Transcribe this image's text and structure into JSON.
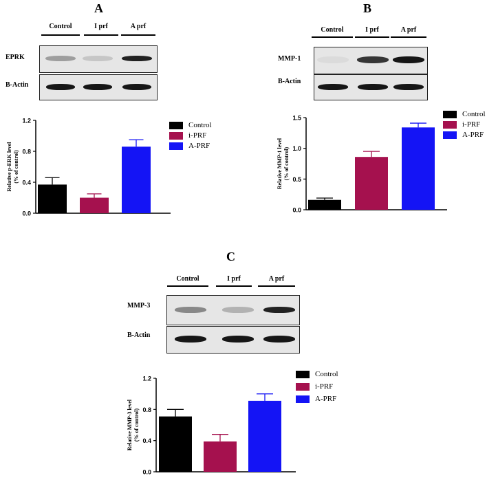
{
  "lanes": [
    "Control",
    "I prf",
    "A prf"
  ],
  "panels": [
    {
      "letter": "A",
      "marker": "EPRK",
      "loading": "B-Actin",
      "bands_marker": [
        0.35,
        0.15,
        0.95
      ],
      "bands_loading": [
        1,
        1,
        1
      ]
    },
    {
      "letter": "B",
      "marker": "MMP-1",
      "loading": "B-Actin",
      "bands_marker": [
        0.05,
        0.85,
        1.0
      ],
      "bands_loading": [
        1,
        1,
        1
      ]
    },
    {
      "letter": "C",
      "marker": "MMP-3",
      "loading": "B-Actin",
      "bands_marker": [
        0.45,
        0.25,
        0.95
      ],
      "bands_loading": [
        1,
        1,
        1
      ]
    }
  ],
  "legend": {
    "items": [
      {
        "label": "Control",
        "color": "#000000"
      },
      {
        "label": "i-PRF",
        "color": "#a5114e"
      },
      {
        "label": "A-PRF",
        "color": "#1414f5"
      }
    ]
  },
  "chart_data": [
    {
      "type": "bar",
      "categories": [
        "Control",
        "i-PRF",
        "A-PRF"
      ],
      "values": [
        0.37,
        0.2,
        0.86
      ],
      "errors": [
        0.09,
        0.05,
        0.09
      ],
      "ylabel_line1": "Relative p-ERK level",
      "ylabel_line2": "(% of control)",
      "ylim": [
        0,
        1.2
      ],
      "yticks": [
        "0.0",
        "0.4",
        "0.8",
        "1.2"
      ],
      "ytick_values": [
        0,
        0.4,
        0.8,
        1.2
      ]
    },
    {
      "type": "bar",
      "categories": [
        "Control",
        "i-PRF",
        "A-PRF"
      ],
      "values": [
        0.16,
        0.86,
        1.34
      ],
      "errors": [
        0.03,
        0.09,
        0.07
      ],
      "ylabel_line1": "Relative MMP-1 level",
      "ylabel_line2": "(% of control)",
      "ylim": [
        0,
        1.5
      ],
      "yticks": [
        "0.0",
        "0.5",
        "1.0",
        "1.5"
      ],
      "ytick_values": [
        0,
        0.5,
        1.0,
        1.5
      ]
    },
    {
      "type": "bar",
      "categories": [
        "Control",
        "i-PRF",
        "A-PRF"
      ],
      "values": [
        0.71,
        0.39,
        0.91
      ],
      "errors": [
        0.09,
        0.09,
        0.09
      ],
      "ylabel_line1": "Relative MMP-3 level",
      "ylabel_line2": "(% of control)",
      "ylim": [
        0,
        1.2
      ],
      "yticks": [
        "0.0",
        "0.4",
        "0.8",
        "1.2"
      ],
      "ytick_values": [
        0,
        0.4,
        0.8,
        1.2
      ]
    }
  ]
}
